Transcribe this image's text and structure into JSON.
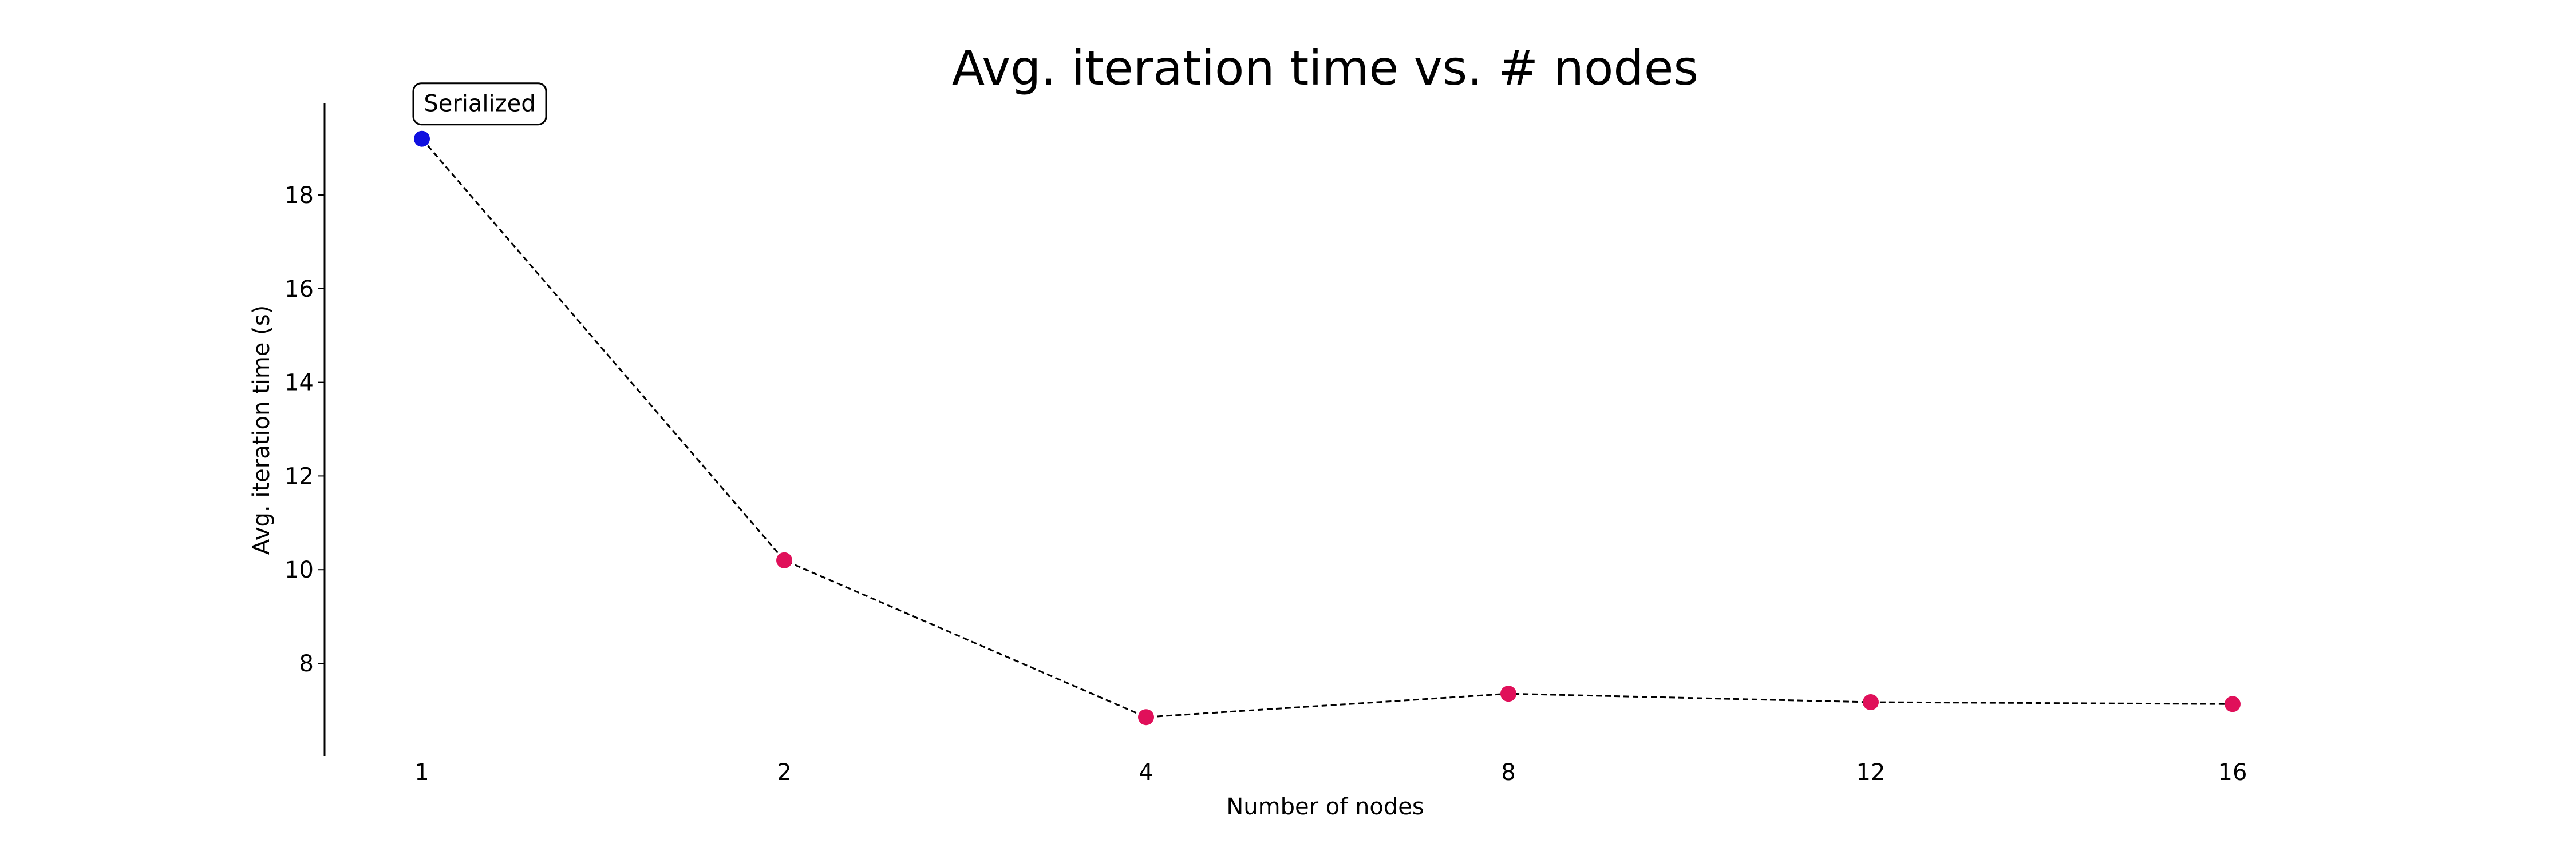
{
  "chart_data": {
    "type": "line",
    "title": "Avg. iteration time vs. # nodes",
    "xlabel": "Number of nodes",
    "ylabel": "Avg. iteration time (s)",
    "x_tick_labels": [
      "1",
      "2",
      "4",
      "8",
      "12",
      "16"
    ],
    "x": [
      "1",
      "2",
      "4",
      "8",
      "12",
      "16"
    ],
    "y": [
      19.2,
      10.2,
      6.85,
      7.35,
      7.17,
      7.13
    ],
    "y_ticks": [
      8,
      10,
      12,
      14,
      16,
      18
    ],
    "ylim": [
      6.0,
      20.0
    ],
    "x_axis_categorical": true,
    "line_style": "dashed",
    "line_color": "#000000",
    "point_colors": [
      "#1010e0",
      "#e0105a",
      "#e0105a",
      "#e0105a",
      "#e0105a",
      "#e0105a"
    ],
    "annotations": [
      {
        "text": "Serialized",
        "point_index": 0
      }
    ],
    "grid": false,
    "legend": "none"
  }
}
